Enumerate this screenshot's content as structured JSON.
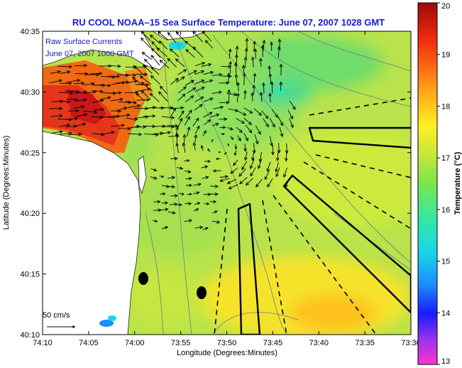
{
  "title": "RU COOL   NOAA–15  Sea Surface Temperature:  June 07, 2007 1028 GMT",
  "legend": {
    "line1": "Raw Surface Currents",
    "line2": "June 07, 2007 1000 GMT"
  },
  "scale_label": "50 cm/s",
  "x_axis": {
    "label": "Longitude (Degrees:Minutes)",
    "ticks": [
      "74:10",
      "74:05",
      "74:00",
      "73:55",
      "73:50",
      "73:45",
      "73:40",
      "73:35",
      "73:30"
    ]
  },
  "y_axis": {
    "label": "Latitude (Degrees:Minutes)",
    "ticks": [
      "40:35",
      "40:30",
      "40:25",
      "40:20",
      "40:15",
      "40:10"
    ]
  },
  "colorbar": {
    "label": "Temperature (°C)",
    "ticks": [
      "20",
      "19",
      "18",
      "17",
      "16",
      "15",
      "14",
      "13"
    ],
    "min": 13,
    "max": 20
  },
  "colors": {
    "title": "#1a1acc",
    "land": "#ffffff",
    "ocean_base": "#b9e44a"
  },
  "chart_data": {
    "type": "heatmap",
    "title": "RU COOL   NOAA–15  Sea Surface Temperature:  June 07, 2007 1028 GMT",
    "xlabel": "Longitude (Degrees:Minutes)",
    "ylabel": "Latitude (Degrees:Minutes)",
    "x_range_deg": [
      -74.1667,
      -73.5
    ],
    "y_range_deg": [
      40.1667,
      40.5833
    ],
    "colorbar_range": [
      13,
      20
    ],
    "colorbar_label": "Temperature (°C)"
  }
}
